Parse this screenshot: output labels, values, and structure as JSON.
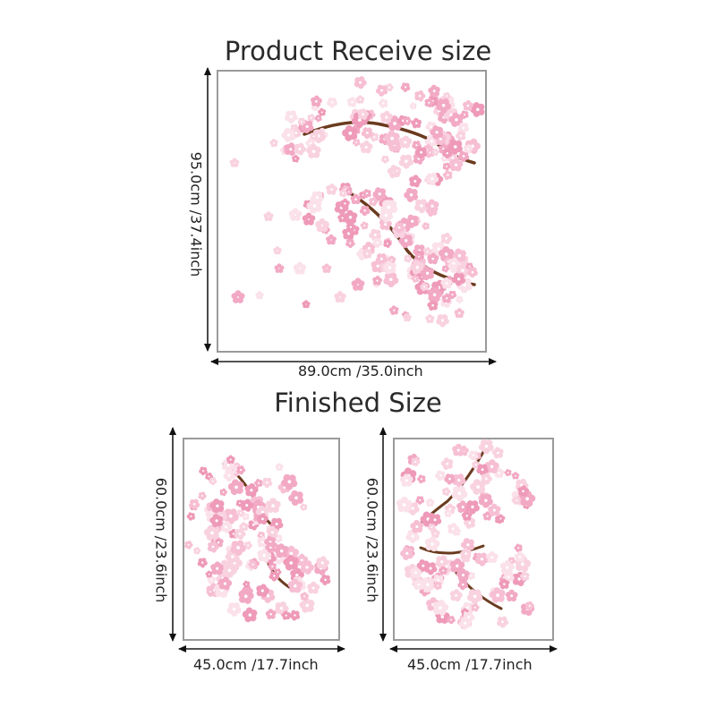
{
  "titles": {
    "product_receive": "Product Receive size",
    "finished": "Finished Size"
  },
  "product": {
    "width_label": "89.0cm /35.0inch",
    "height_label": "95.0cm /37.4inch"
  },
  "finished_left": {
    "width_label": "45.0cm /17.7inch",
    "height_label": "60.0cm /23.6inch"
  },
  "finished_right": {
    "width_label": "45.0cm /17.7inch",
    "height_label": "60.0cm /23.6inch"
  },
  "colors": {
    "blossom_pink": "#f2a9c4",
    "blossom_light": "#f9d2e0",
    "branch_brown": "#6b3b1f",
    "frame_gray": "#9a9a9a",
    "arrow_black": "#111111"
  }
}
